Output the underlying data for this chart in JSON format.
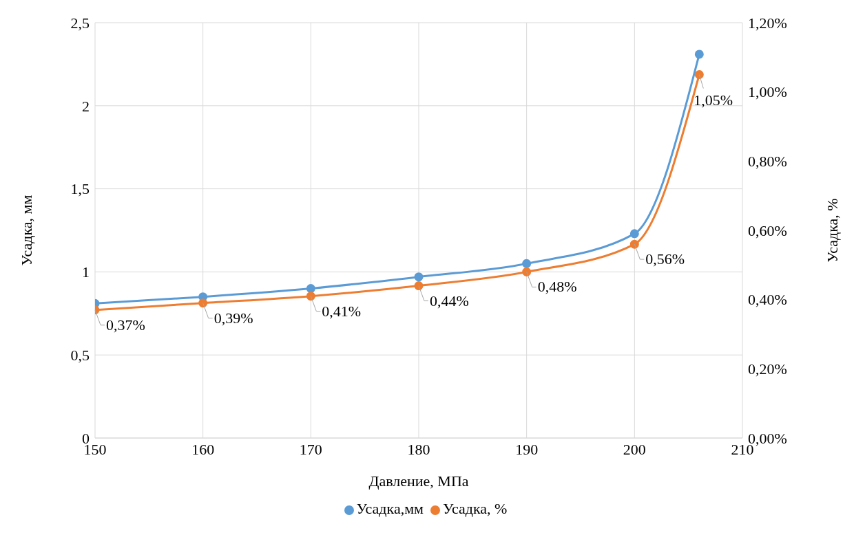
{
  "chart_data": {
    "type": "line",
    "xlabel": "Давление, МПа",
    "ylabel": "Усадка, мм",
    "y2label": "Усадка, %",
    "x": [
      150,
      160,
      170,
      180,
      190,
      200,
      206
    ],
    "series": [
      {
        "name": "Усадка,мм",
        "color": "#5b9bd5",
        "values": [
          0.81,
          0.85,
          0.9,
          0.97,
          1.05,
          1.23,
          2.31
        ]
      },
      {
        "name": "Усадка, %",
        "color": "#ed7d31",
        "axis": "y2",
        "values": [
          0.37,
          0.39,
          0.41,
          0.44,
          0.48,
          0.56,
          1.05
        ],
        "value_labels": [
          "0,37%",
          "0,39%",
          "0,41%",
          "0,44%",
          "0,48%",
          "0,56%",
          "1,05%"
        ]
      }
    ],
    "xlim": [
      150,
      210
    ],
    "xticks": [
      150,
      160,
      170,
      180,
      190,
      200,
      210
    ],
    "ylim": [
      0,
      2.5
    ],
    "yticks": [
      0,
      {
        "value": 0.5,
        "label": "0,5"
      },
      1,
      {
        "value": 1.5,
        "label": "1,5"
      },
      2,
      {
        "value": 2.5,
        "label": "2,5"
      }
    ],
    "y2lim": [
      0,
      1.2
    ],
    "y2ticks": [
      {
        "value": 0,
        "label": "0,00%"
      },
      {
        "value": 0.2,
        "label": "0,20%"
      },
      {
        "value": 0.4,
        "label": "0,40%"
      },
      {
        "value": 0.6,
        "label": "0,60%"
      },
      {
        "value": 0.8,
        "label": "0,80%"
      },
      {
        "value": 1,
        "label": "1,00%"
      },
      {
        "value": 1.2,
        "label": "1,20%"
      }
    ],
    "grid": true,
    "legend": "bottom",
    "marker": "circle",
    "line_style": "solid"
  }
}
